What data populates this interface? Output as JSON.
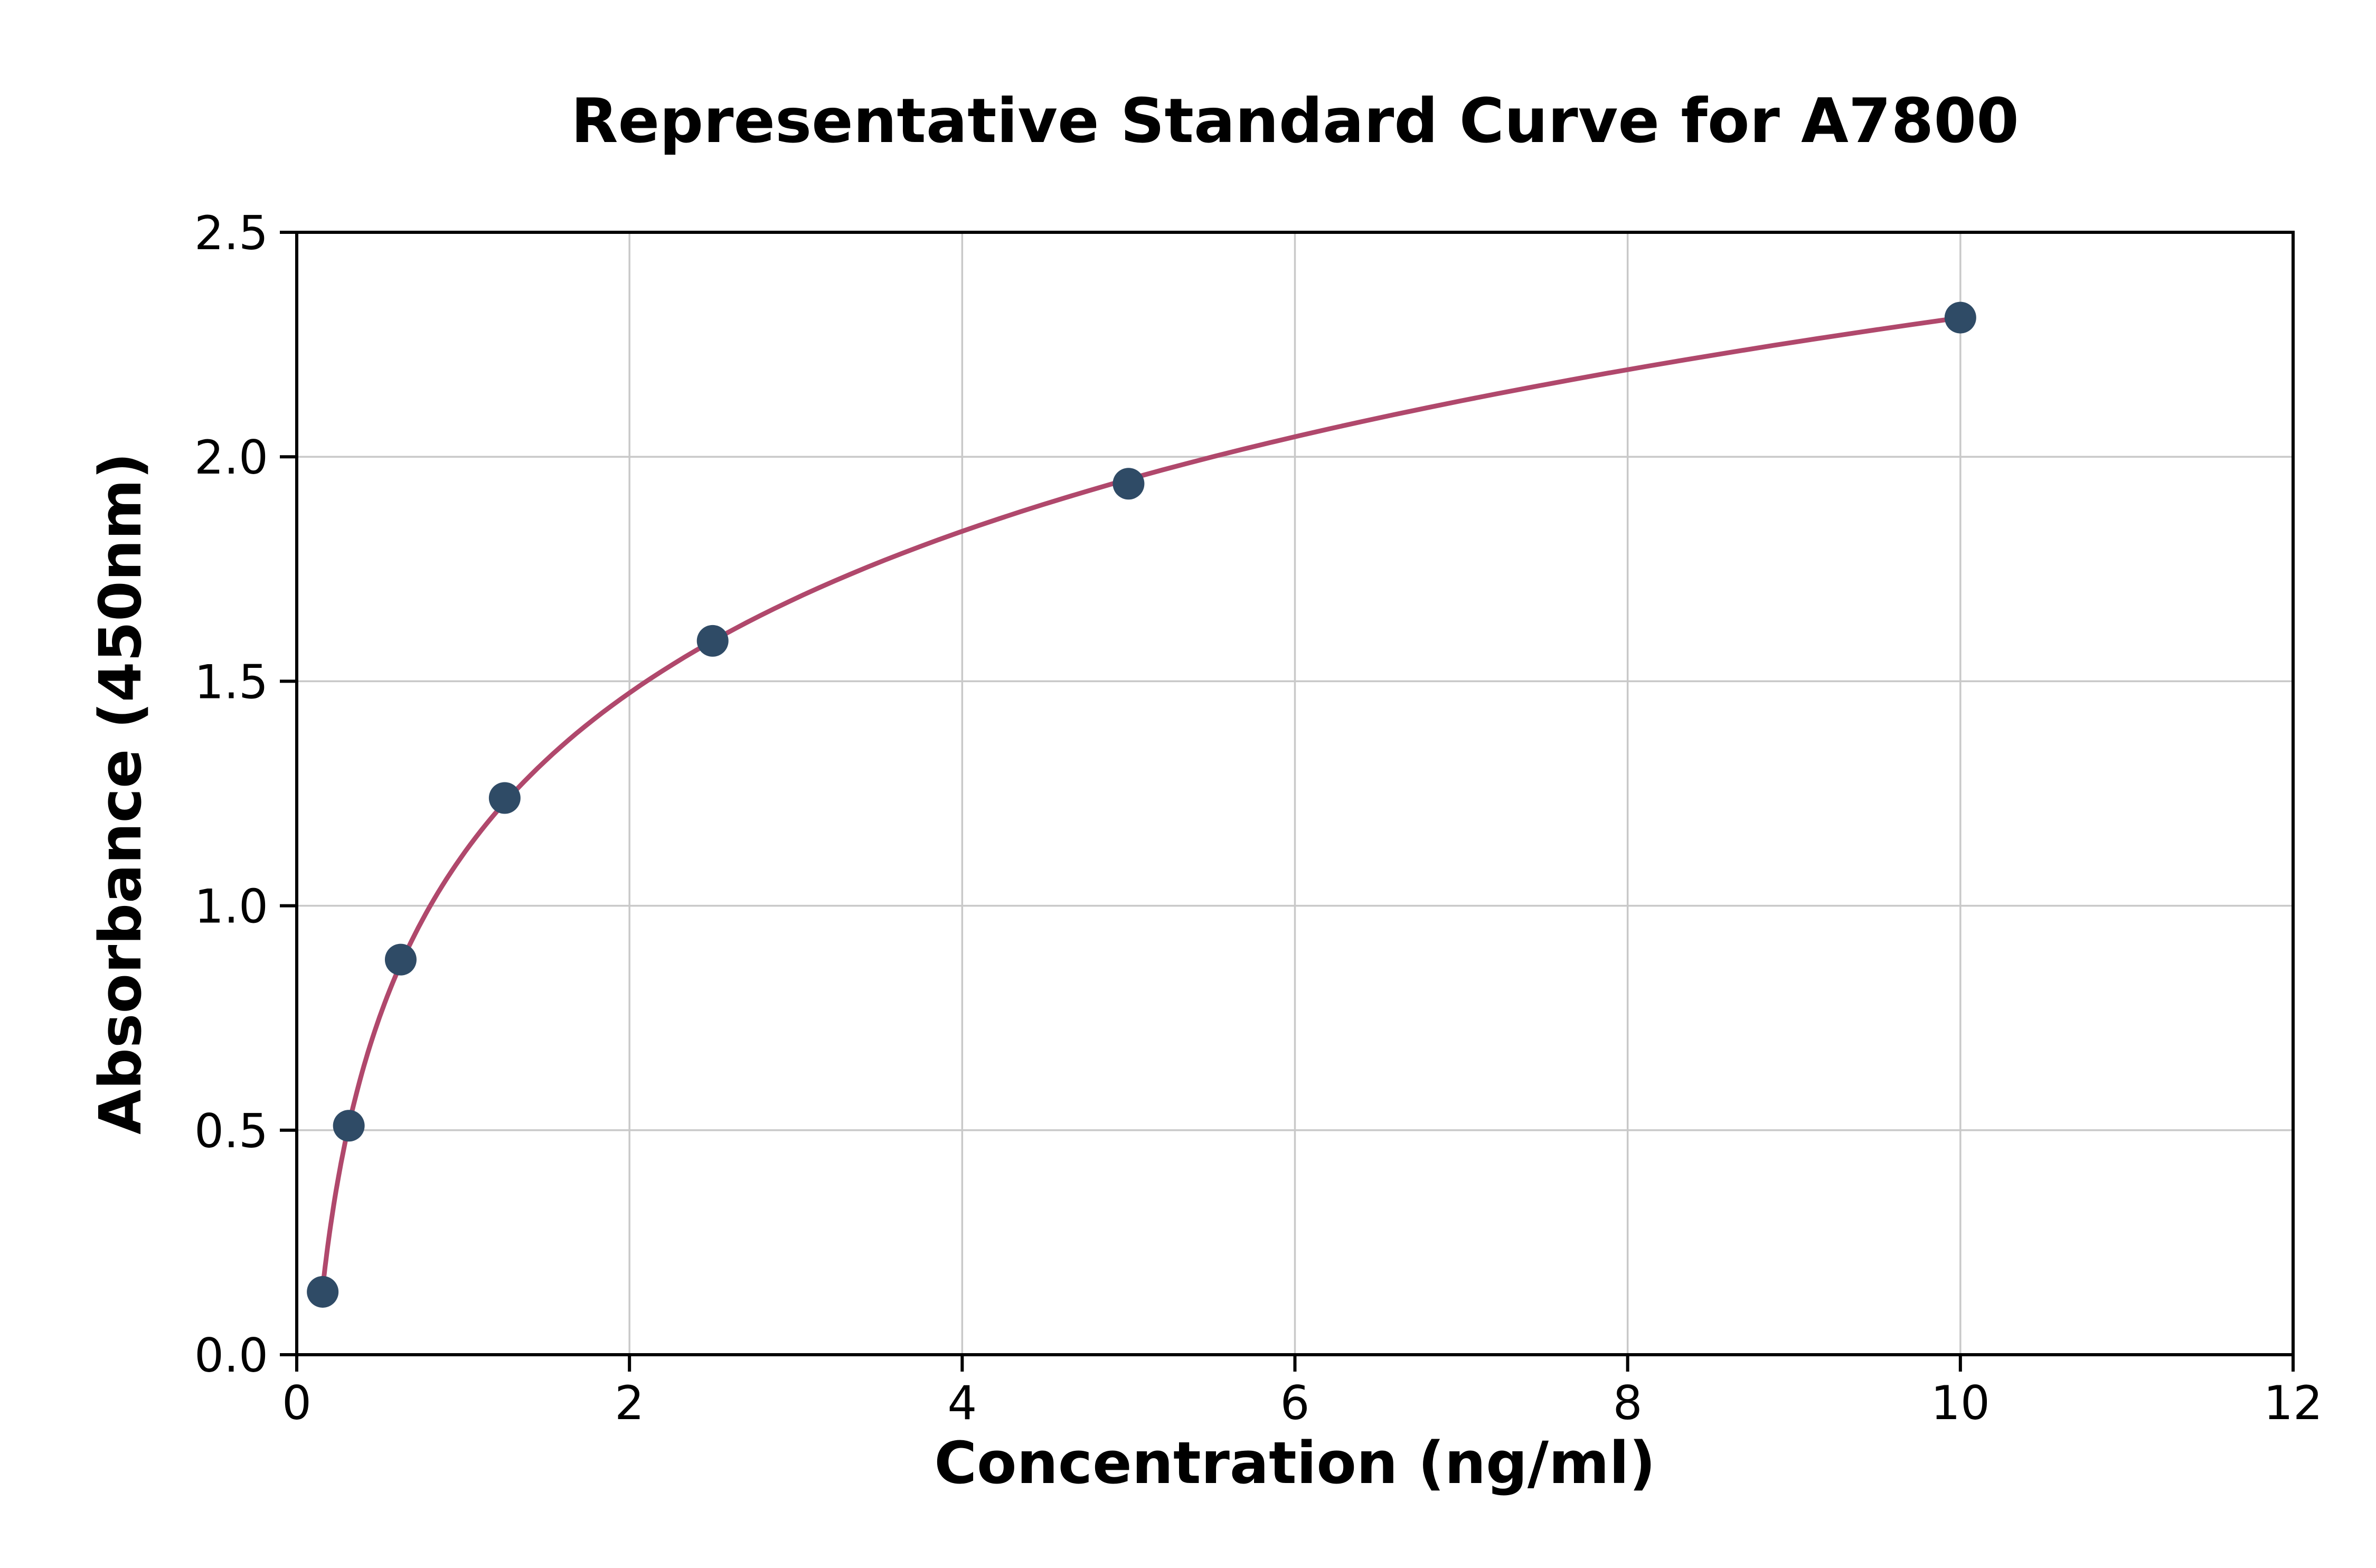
{
  "page": {
    "background": "#ffffff"
  },
  "chart_data": {
    "type": "scatter",
    "title": "Representative Standard Curve for A7800",
    "xlabel": "Concentration (ng/ml)",
    "ylabel": "Absorbance (450nm)",
    "x": [
      0.156,
      0.313,
      0.625,
      1.25,
      2.5,
      5,
      10
    ],
    "y": [
      0.14,
      0.51,
      0.88,
      1.24,
      1.59,
      1.94,
      2.31
    ],
    "curve": "smooth logarithmic fit through the data points",
    "xlim": [
      0,
      12
    ],
    "ylim": [
      0,
      2.5
    ],
    "xticks": [
      0,
      2,
      4,
      6,
      8,
      10,
      12
    ],
    "xtick_labels": [
      "0",
      "2",
      "4",
      "6",
      "8",
      "10",
      "12"
    ],
    "yticks": [
      0,
      0.5,
      1,
      1.5,
      2,
      2.5
    ],
    "ytick_labels": [
      "0.0",
      "0.5",
      "1.0",
      "1.5",
      "2.0",
      "2.5"
    ],
    "grid": true,
    "legend_position": "none",
    "colors": {
      "line": "#b0486c",
      "marker": "#2f4b66",
      "grid": "#c9c9c9",
      "spine": "#000000",
      "text": "#000000"
    }
  }
}
